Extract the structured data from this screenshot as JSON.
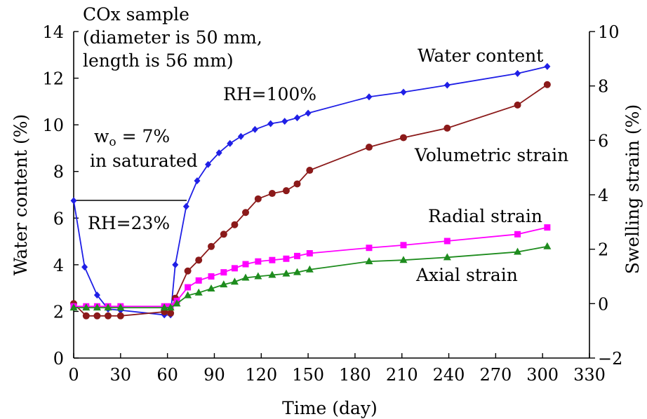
{
  "chart_data": {
    "type": "line",
    "xlabel": "Time (day)",
    "ylabel_left": "Water content (%)",
    "ylabel_right": "Swelling strain (%)",
    "xlim": [
      0,
      330
    ],
    "ylim_left": [
      0,
      14
    ],
    "ylim_right": [
      -2,
      10
    ],
    "x_ticks": [
      0,
      30,
      60,
      90,
      120,
      150,
      180,
      210,
      240,
      270,
      300,
      330
    ],
    "y_left_ticks": [
      0,
      2,
      4,
      6,
      8,
      10,
      12,
      14
    ],
    "y_right_ticks": [
      -2,
      0,
      2,
      4,
      6,
      8,
      10
    ],
    "y_right_tick_labels": [
      "−2",
      "0",
      "2",
      "4",
      "6",
      "8",
      "10"
    ],
    "grid": false,
    "annotations": {
      "sample_line1": "COx sample",
      "sample_line2": "(diameter is 50 mm,",
      "sample_line3": "length is 56 mm)",
      "w0_symbol": "w",
      "w0_subscript": "o",
      "w0_value": " = 7%",
      "w0_line2": "in saturated",
      "rh100": "RH=100%",
      "rh23": "RH=23%"
    },
    "series": [
      {
        "name": "Water content",
        "axis": "left",
        "color": "#1f1fe6",
        "marker": "diamond",
        "x": [
          0,
          7,
          15,
          22,
          30,
          58,
          62,
          65,
          72,
          79,
          86,
          93,
          100,
          107,
          116,
          126,
          135,
          143,
          150,
          189,
          211,
          239,
          284,
          303
        ],
        "y": [
          6.75,
          3.9,
          2.7,
          2.1,
          2.05,
          1.85,
          1.85,
          4.0,
          6.5,
          7.6,
          8.3,
          8.8,
          9.2,
          9.5,
          9.8,
          10.05,
          10.15,
          10.3,
          10.5,
          11.2,
          11.4,
          11.7,
          12.2,
          12.5
        ]
      },
      {
        "name": "Volumetric strain",
        "axis": "right",
        "color": "#8b1a1a",
        "marker": "circle",
        "x": [
          0,
          8,
          15,
          22,
          30,
          58,
          62,
          65,
          73,
          80,
          88,
          96,
          103,
          110,
          118,
          127,
          136,
          143,
          151,
          189,
          211,
          239,
          284,
          303
        ],
        "y": [
          0.0,
          -0.45,
          -0.45,
          -0.45,
          -0.45,
          -0.3,
          -0.35,
          0.2,
          1.2,
          1.6,
          2.1,
          2.55,
          2.9,
          3.35,
          3.85,
          4.05,
          4.15,
          4.4,
          4.9,
          5.75,
          6.1,
          6.45,
          7.3,
          8.05
        ]
      },
      {
        "name": "Radial strain",
        "axis": "right",
        "color": "#ff00ff",
        "marker": "square",
        "x": [
          0,
          8,
          15,
          22,
          30,
          58,
          62,
          66,
          73,
          80,
          88,
          96,
          103,
          110,
          118,
          127,
          136,
          143,
          151,
          189,
          211,
          239,
          284,
          303
        ],
        "y": [
          -0.1,
          -0.1,
          -0.1,
          -0.1,
          -0.1,
          -0.1,
          -0.1,
          0.1,
          0.6,
          0.85,
          1.0,
          1.15,
          1.3,
          1.45,
          1.55,
          1.6,
          1.65,
          1.75,
          1.85,
          2.05,
          2.15,
          2.3,
          2.55,
          2.8
        ]
      },
      {
        "name": "Axial strain",
        "axis": "right",
        "color": "#1e8c1e",
        "marker": "triangle",
        "x": [
          0,
          8,
          15,
          22,
          30,
          58,
          62,
          66,
          73,
          80,
          88,
          96,
          103,
          110,
          118,
          127,
          136,
          143,
          151,
          189,
          211,
          239,
          284,
          303
        ],
        "y": [
          -0.15,
          -0.15,
          -0.15,
          -0.15,
          -0.15,
          -0.15,
          -0.15,
          0.0,
          0.3,
          0.4,
          0.55,
          0.7,
          0.8,
          0.95,
          1.0,
          1.05,
          1.1,
          1.15,
          1.25,
          1.55,
          1.6,
          1.7,
          1.9,
          2.1
        ]
      }
    ]
  }
}
